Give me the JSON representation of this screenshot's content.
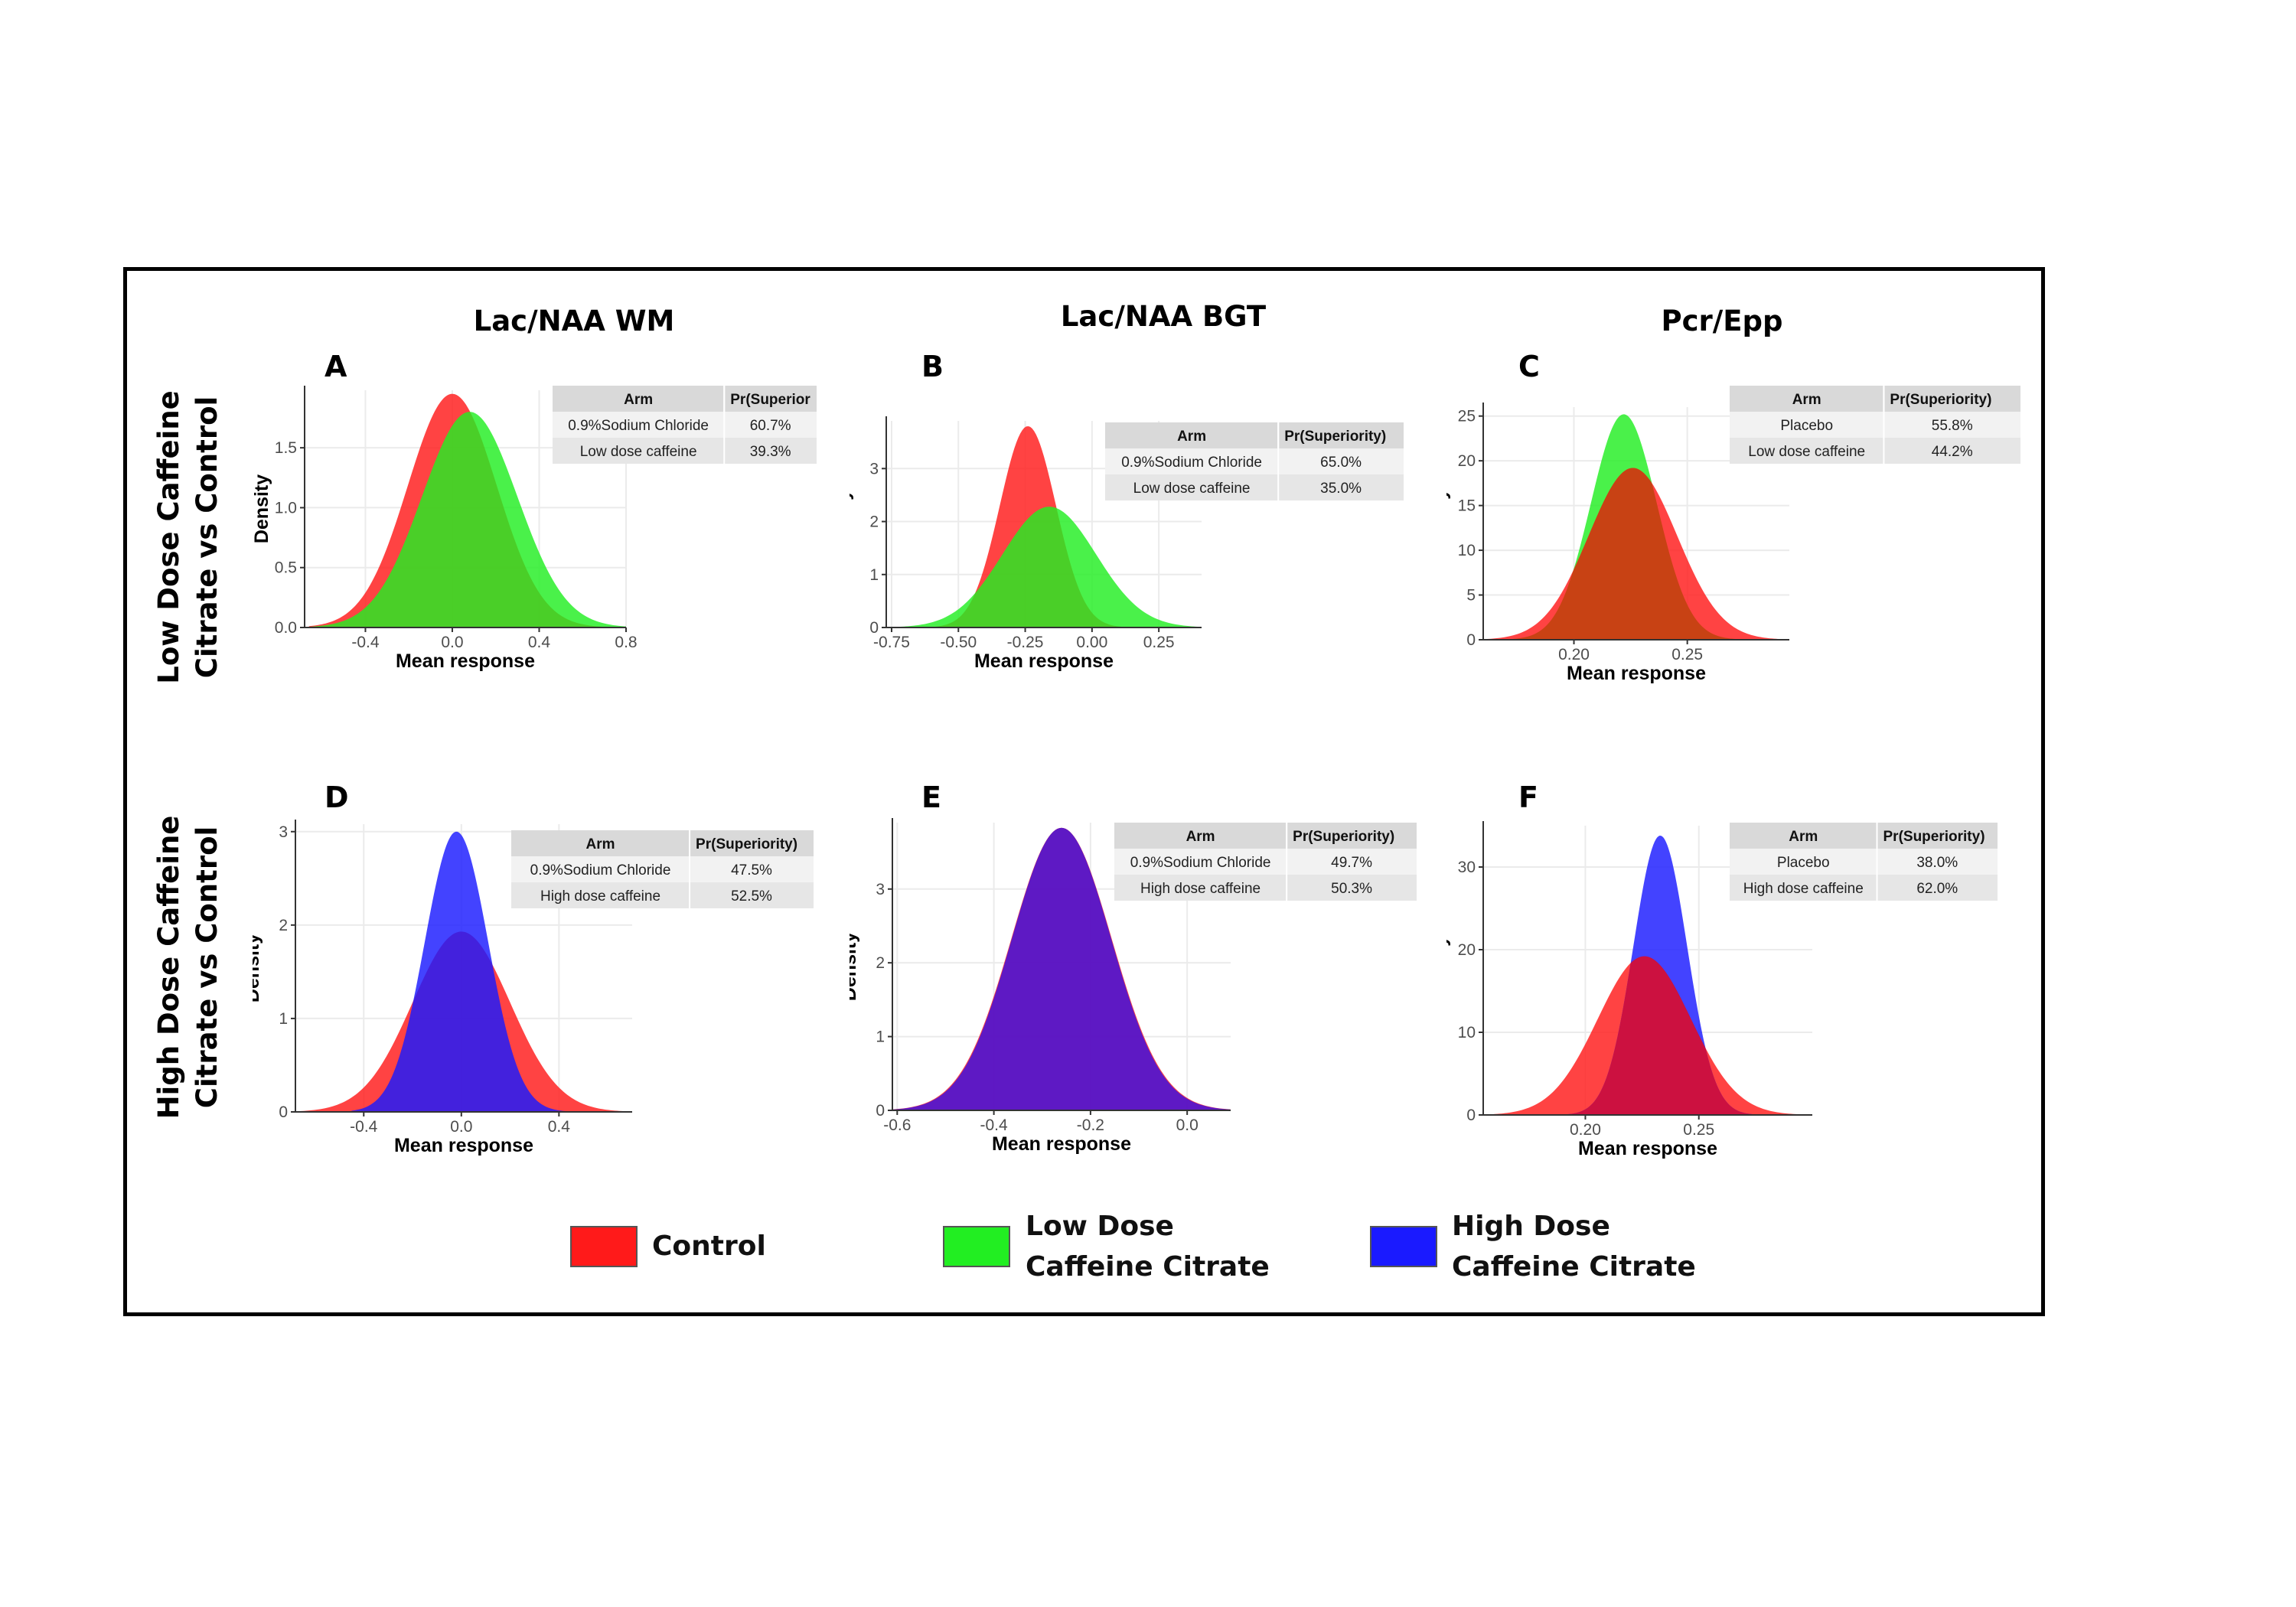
{
  "column_titles": [
    "Lac/NAA WM",
    "Lac/NAA BGT",
    "Pcr/Epp"
  ],
  "row_labels": [
    "Low Dose Caffeine Citrate vs Control",
    "High Dose Caffeine Citrate vs Control"
  ],
  "colors": {
    "control": "#ff1a1a",
    "low_dose": "#22ee22",
    "high_dose": "#1a1aff"
  },
  "legend": [
    {
      "label": "Control",
      "color": "#ff1a1a"
    },
    {
      "label": "Low Dose Caffeine Citrate",
      "color": "#22ee22"
    },
    {
      "label": "High Dose Caffeine Citrate",
      "color": "#1a1aff"
    }
  ],
  "chart_data": [
    {
      "panel": "A",
      "type": "area",
      "xlabel": "Mean response",
      "ylabel": "Density",
      "xlim": [
        -0.68,
        0.8
      ],
      "ylim": [
        0,
        1.98
      ],
      "xticks": [
        "-0.4",
        "0.0",
        "0.4",
        "0.8"
      ],
      "yticks": [
        "0.0",
        "0.5",
        "1.0",
        "1.5"
      ],
      "xtick_values": [
        -0.4,
        0.0,
        0.4,
        0.8
      ],
      "ytick_values": [
        0,
        0.5,
        1.0,
        1.5
      ],
      "series": [
        {
          "color": "#ff1a1a",
          "mean": 0.0,
          "sd": 0.205,
          "peak": 1.95,
          "range": [
            -0.66,
            0.7
          ]
        },
        {
          "color": "#22ee22",
          "mean": 0.08,
          "sd": 0.22,
          "peak": 1.8,
          "range": [
            -0.66,
            0.8
          ]
        }
      ],
      "table": {
        "headers": [
          "Arm",
          "Pr(Superior"
        ],
        "rows": [
          [
            "0.9%Sodium Chloride",
            "60.7%"
          ],
          [
            "Low dose caffeine",
            "39.3%"
          ]
        ]
      }
    },
    {
      "panel": "B",
      "type": "area",
      "xlabel": "Mean response",
      "ylabel": "Density",
      "xlim": [
        -0.77,
        0.41
      ],
      "ylim": [
        0,
        3.9
      ],
      "xticks": [
        "-0.75",
        "-0.50",
        "-0.25",
        "0.00",
        "0.25"
      ],
      "yticks": [
        "0",
        "1",
        "2",
        "3"
      ],
      "xtick_values": [
        -0.75,
        -0.5,
        -0.25,
        0.0,
        0.25
      ],
      "ytick_values": [
        0,
        1,
        2,
        3
      ],
      "series": [
        {
          "color": "#ff1a1a",
          "mean": -0.24,
          "sd": 0.105,
          "peak": 3.8,
          "range": [
            -0.77,
            0.41
          ]
        },
        {
          "color": "#22ee22",
          "mean": -0.16,
          "sd": 0.175,
          "peak": 2.28,
          "range": [
            -0.77,
            0.41
          ]
        }
      ],
      "table": {
        "headers": [
          "Arm",
          "Pr(Superiority)"
        ],
        "rows": [
          [
            "0.9%Sodium Chloride",
            "65.0%"
          ],
          [
            "Low dose caffeine",
            "35.0%"
          ]
        ]
      }
    },
    {
      "panel": "C",
      "type": "area",
      "xlabel": "Mean response",
      "ylabel": "Density",
      "xlim": [
        0.16,
        0.295
      ],
      "ylim": [
        0,
        26
      ],
      "xticks": [
        "0.20",
        "0.25"
      ],
      "yticks": [
        "0",
        "5",
        "10",
        "15",
        "20",
        "25"
      ],
      "xtick_values": [
        0.2,
        0.25
      ],
      "ytick_values": [
        0,
        5,
        10,
        15,
        20,
        25
      ],
      "series": [
        {
          "color": "#22ee22",
          "mean": 0.222,
          "sd": 0.0145,
          "peak": 25.2,
          "range": [
            0.17,
            0.28
          ]
        },
        {
          "color": "#ff1a1a",
          "mean": 0.226,
          "sd": 0.0195,
          "peak": 19.2,
          "range": [
            0.16,
            0.295
          ]
        }
      ],
      "overlap_color": "#c84214",
      "table": {
        "headers": [
          "Arm",
          "Pr(Superiority)"
        ],
        "rows": [
          [
            "Placebo",
            "55.8%"
          ],
          [
            "Low dose caffeine",
            "44.2%"
          ]
        ]
      }
    },
    {
      "panel": "D",
      "type": "area",
      "xlabel": "Mean response",
      "ylabel": "Density",
      "xlim": [
        -0.68,
        0.7
      ],
      "ylim": [
        0,
        3.08
      ],
      "xticks": [
        "-0.4",
        "0.0",
        "0.4"
      ],
      "yticks": [
        "0",
        "1",
        "2",
        "3"
      ],
      "xtick_values": [
        -0.4,
        0.0,
        0.4
      ],
      "ytick_values": [
        0,
        1,
        2,
        3
      ],
      "series": [
        {
          "color": "#ff1a1a",
          "mean": 0.0,
          "sd": 0.2,
          "peak": 1.93,
          "range": [
            -0.67,
            0.68
          ]
        },
        {
          "color": "#1a1aff",
          "mean": -0.02,
          "sd": 0.13,
          "peak": 3.0,
          "range": [
            -0.45,
            0.45
          ]
        }
      ],
      "table": {
        "headers": [
          "Arm",
          "Pr(Superiority)"
        ],
        "rows": [
          [
            "0.9%Sodium Chloride",
            "47.5%"
          ],
          [
            "High dose caffeine",
            "52.5%"
          ]
        ]
      }
    },
    {
      "panel": "E",
      "type": "area",
      "xlabel": "Mean response",
      "ylabel": "Density",
      "xlim": [
        -0.61,
        0.09
      ],
      "ylim": [
        0,
        3.9
      ],
      "xticks": [
        "-0.6",
        "-0.4",
        "-0.2",
        "0.0"
      ],
      "yticks": [
        "0",
        "1",
        "2",
        "3"
      ],
      "xtick_values": [
        -0.6,
        -0.4,
        -0.2,
        0.0
      ],
      "ytick_values": [
        0,
        1,
        2,
        3
      ],
      "series": [
        {
          "color": "#ff1a1a",
          "mean": -0.26,
          "sd": 0.104,
          "peak": 3.83,
          "range": [
            -0.61,
            0.09
          ]
        },
        {
          "color": "#3a10e0",
          "mean": -0.26,
          "sd": 0.103,
          "peak": 3.83,
          "range": [
            -0.61,
            0.09
          ]
        }
      ],
      "table": {
        "headers": [
          "Arm",
          "Pr(Superiority)"
        ],
        "rows": [
          [
            "0.9%Sodium Chloride",
            "49.7%"
          ],
          [
            "High dose caffeine",
            "50.3%"
          ]
        ]
      }
    },
    {
      "panel": "F",
      "type": "area",
      "xlabel": "Mean response",
      "ylabel": "Density",
      "xlim": [
        0.155,
        0.3
      ],
      "ylim": [
        0,
        35
      ],
      "xticks": [
        "0.20",
        "0.25"
      ],
      "yticks": [
        "0",
        "10",
        "20",
        "30"
      ],
      "xtick_values": [
        0.2,
        0.25
      ],
      "ytick_values": [
        0,
        10,
        20,
        30
      ],
      "series": [
        {
          "color": "#ff1a1a",
          "mean": 0.226,
          "sd": 0.0205,
          "peak": 19.2,
          "range": [
            0.155,
            0.295
          ]
        },
        {
          "color": "#1a1aff",
          "mean": 0.233,
          "sd": 0.0118,
          "peak": 33.8,
          "range": [
            0.19,
            0.28
          ]
        }
      ],
      "overlap_color": "#cc1140",
      "table": {
        "headers": [
          "Arm",
          "Pr(Superiority)"
        ],
        "rows": [
          [
            "Placebo",
            "38.0%"
          ],
          [
            "High dose caffeine",
            "62.0%"
          ]
        ]
      }
    }
  ]
}
